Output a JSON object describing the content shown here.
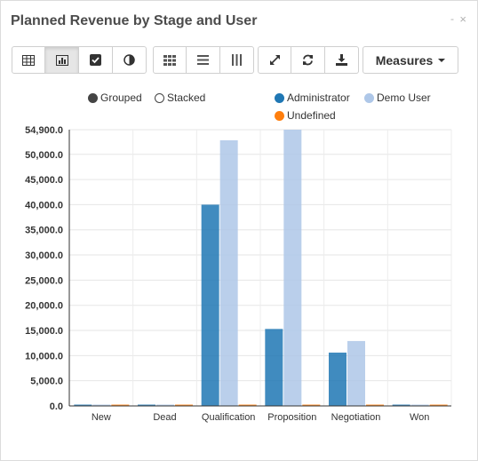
{
  "window": {
    "title": "Planned Revenue by Stage and User",
    "minimize_glyph": "-",
    "close_glyph": "×"
  },
  "toolbar": {
    "view_buttons": [
      {
        "icon": "table-icon",
        "active": false
      },
      {
        "icon": "bar-chart-icon",
        "active": true
      },
      {
        "icon": "checkbox-icon",
        "active": false
      },
      {
        "icon": "pie-chart-icon",
        "active": false
      }
    ],
    "layout_buttons": [
      {
        "icon": "grid-icon"
      },
      {
        "icon": "list-icon"
      },
      {
        "icon": "columns-icon"
      }
    ],
    "action_buttons": [
      {
        "icon": "expand-icon"
      },
      {
        "icon": "refresh-icon"
      },
      {
        "icon": "download-icon"
      }
    ],
    "measures_label": "Measures"
  },
  "legend": {
    "modes": [
      {
        "label": "Grouped",
        "selected": true
      },
      {
        "label": "Stacked",
        "selected": false
      }
    ],
    "series": [
      {
        "label": "Administrator",
        "color": "#1f77b4"
      },
      {
        "label": "Demo User",
        "color": "#aec7e8"
      },
      {
        "label": "Undefined",
        "color": "#ff7f0e"
      }
    ]
  },
  "chart_data": {
    "type": "bar",
    "mode": "grouped",
    "title": "",
    "xlabel": "",
    "ylabel": "",
    "categories": [
      "New",
      "Dead",
      "Qualification",
      "Proposition",
      "Negotiation",
      "Won"
    ],
    "series": [
      {
        "name": "Administrator",
        "color": "#1f77b4",
        "values": [
          0,
          0,
          40000,
          15300,
          10600,
          0
        ]
      },
      {
        "name": "Demo User",
        "color": "#aec7e8",
        "values": [
          0,
          0,
          52800,
          54900,
          12900,
          0
        ]
      },
      {
        "name": "Undefined",
        "color": "#ff7f0e",
        "values": [
          0,
          0,
          0,
          0,
          0,
          0
        ]
      }
    ],
    "ylim": [
      0,
      54900
    ],
    "yticks": [
      "0.0",
      "5,000.0",
      "10,000.0",
      "15,000.0",
      "20,000.0",
      "25,000.0",
      "30,000.0",
      "35,000.0",
      "40,000.0",
      "45,000.0",
      "50,000.0",
      "54,900.0"
    ],
    "ytick_values": [
      0,
      5000,
      10000,
      15000,
      20000,
      25000,
      30000,
      35000,
      40000,
      45000,
      50000,
      54900
    ],
    "grid": true,
    "legend_position": "top"
  }
}
